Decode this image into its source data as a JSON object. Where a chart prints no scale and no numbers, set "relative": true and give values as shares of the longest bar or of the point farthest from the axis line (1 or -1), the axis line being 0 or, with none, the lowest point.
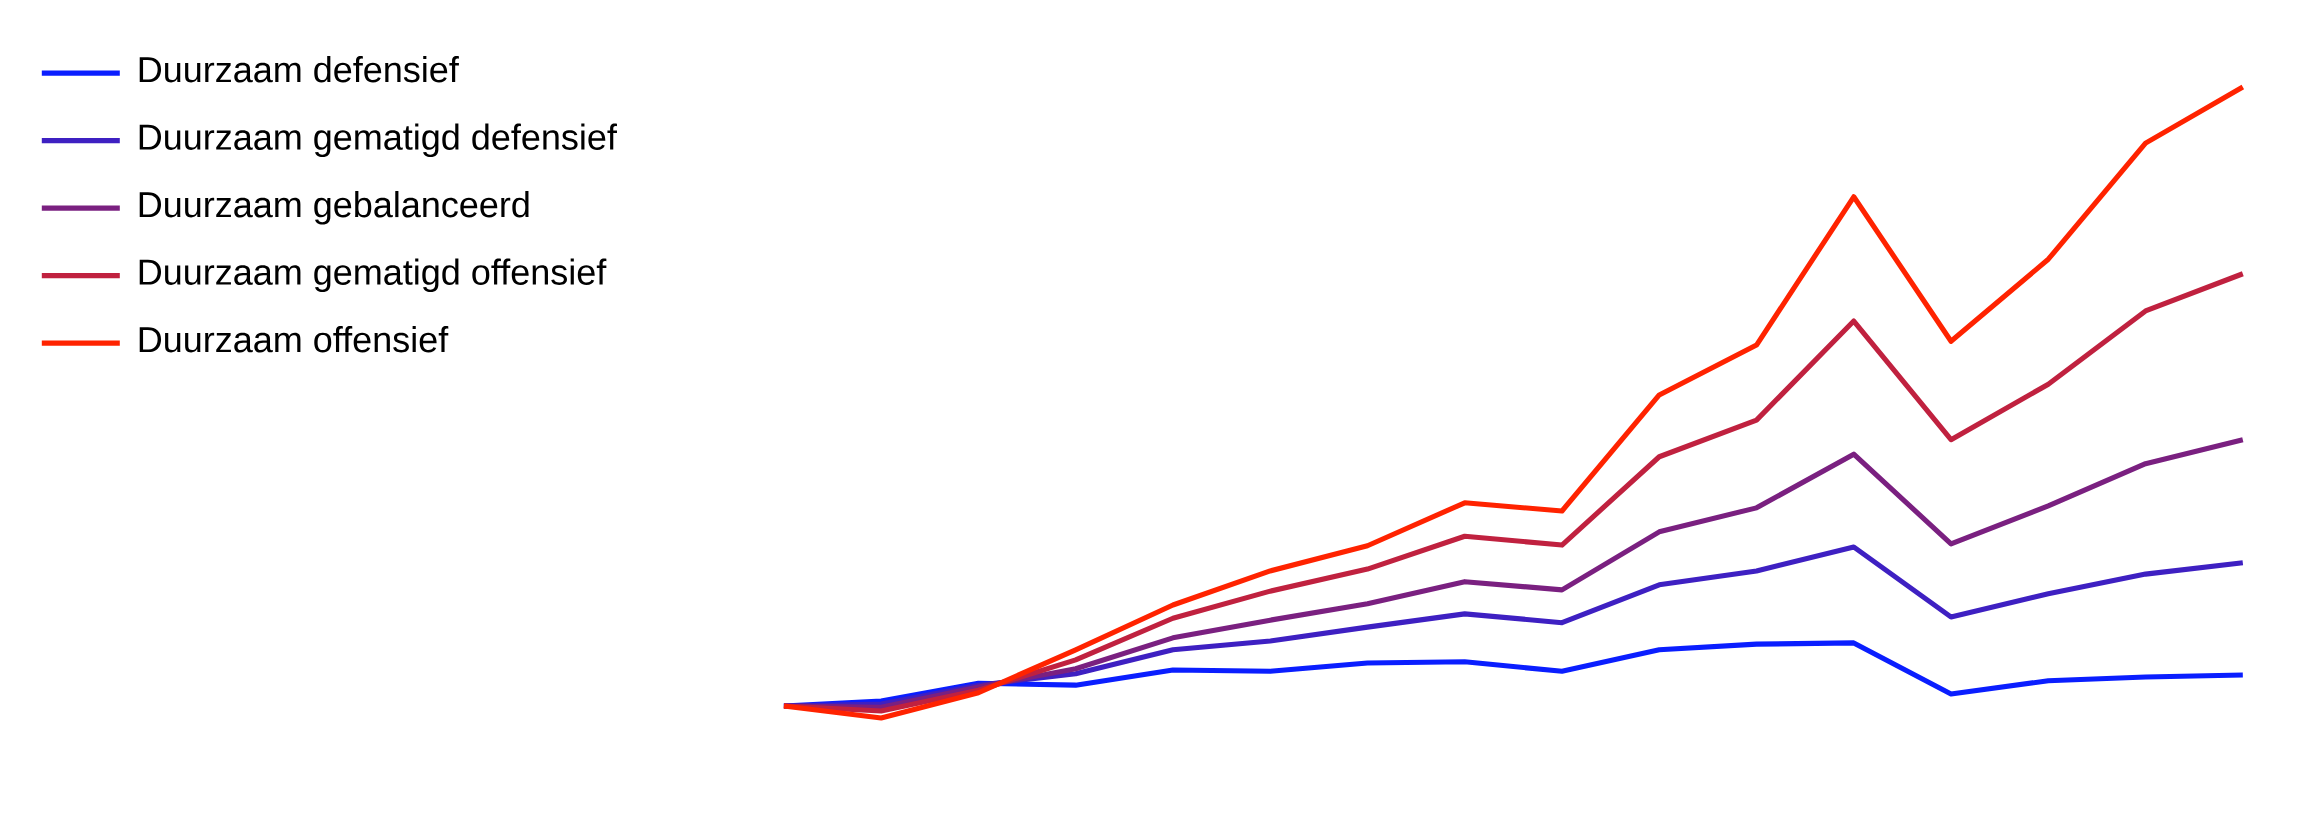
{
  "chart_data": {
    "type": "line",
    "relative": true,
    "categories": [
      null,
      null,
      null,
      null,
      null,
      null,
      null,
      null,
      null,
      null,
      null,
      null,
      null,
      null,
      null,
      null
    ],
    "series": [
      {
        "name": "Duurzaam defensief",
        "color": "#0a1eff",
        "values": [
          0.019,
          0.027,
          0.055,
          0.052,
          0.076,
          0.074,
          0.087,
          0.089,
          0.074,
          0.108,
          0.117,
          0.119,
          0.038,
          0.059,
          0.065,
          0.068
        ]
      },
      {
        "name": "Duurzaam gematigd defensief",
        "color": "#3e20c2",
        "values": [
          0.019,
          0.022,
          0.052,
          0.07,
          0.108,
          0.122,
          0.144,
          0.165,
          0.151,
          0.211,
          0.233,
          0.271,
          0.16,
          0.197,
          0.228,
          0.246
        ]
      },
      {
        "name": "Duurzaam gebalanceerd",
        "color": "#7a2080",
        "values": [
          0.019,
          0.017,
          0.049,
          0.078,
          0.127,
          0.155,
          0.181,
          0.216,
          0.203,
          0.295,
          0.333,
          0.418,
          0.276,
          0.336,
          0.403,
          0.441
        ]
      },
      {
        "name": "Duurzaam gematigd offensief",
        "color": "#c0213f",
        "values": [
          0.019,
          0.011,
          0.044,
          0.092,
          0.158,
          0.201,
          0.236,
          0.288,
          0.274,
          0.414,
          0.472,
          0.629,
          0.441,
          0.529,
          0.645,
          0.704
        ]
      },
      {
        "name": "Duurzaam offensief",
        "color": "#ff2300",
        "values": [
          0.019,
          0.0,
          0.04,
          0.108,
          0.179,
          0.233,
          0.273,
          0.341,
          0.328,
          0.512,
          0.591,
          0.826,
          0.597,
          0.727,
          0.911,
          1.0
        ]
      }
    ],
    "legend": "top left",
    "marker": "none",
    "line_style": "solid"
  }
}
